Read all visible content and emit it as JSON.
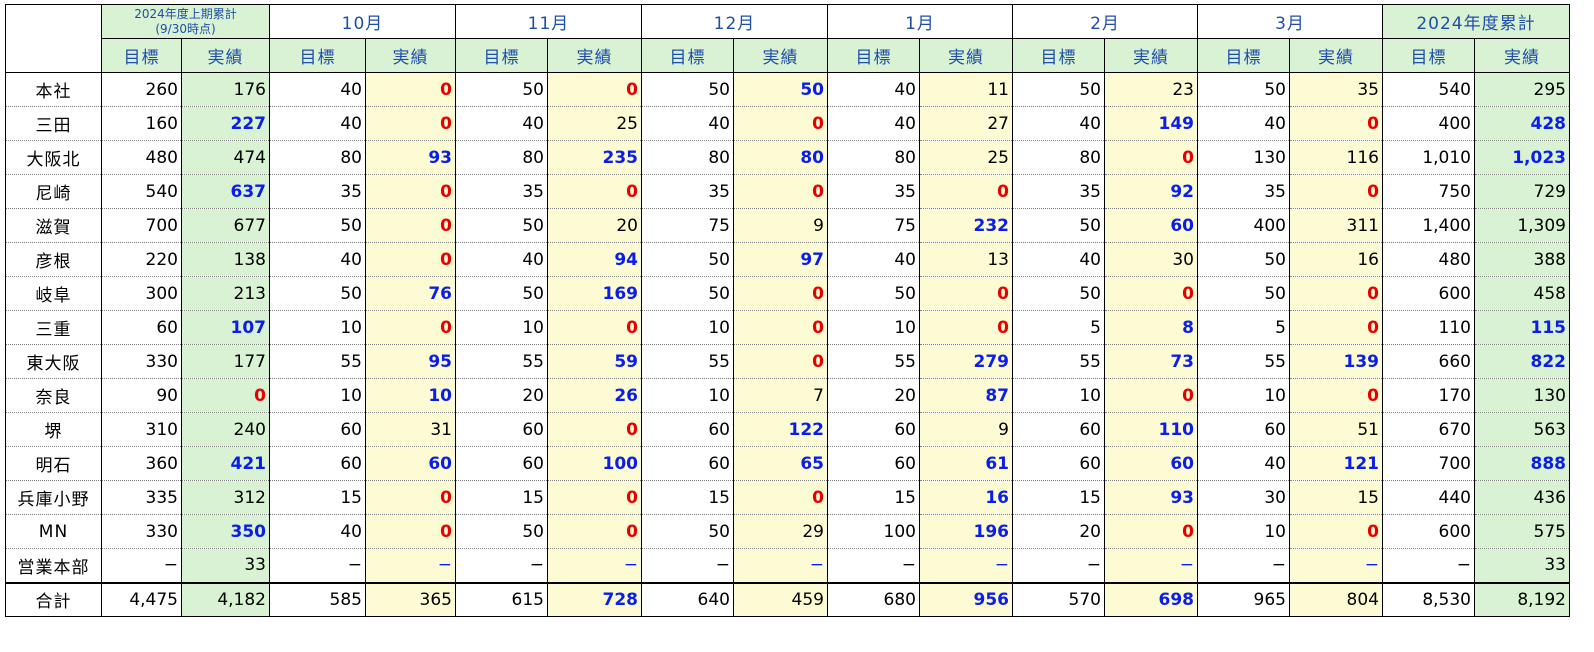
{
  "header": {
    "corner": "",
    "periods": [
      {
        "line1": "2024年度上期累計",
        "line2": "(9/30時点)"
      },
      {
        "line1": "10月"
      },
      {
        "line1": "11月"
      },
      {
        "line1": "12月"
      },
      {
        "line1": "1月"
      },
      {
        "line1": "2月"
      },
      {
        "line1": "3月"
      },
      {
        "line1": "2024年度累計"
      }
    ],
    "sub_target": "目標",
    "sub_actual": "実績"
  },
  "rows": [
    {
      "label": "本社",
      "cells": [
        {
          "v": "260",
          "c": ""
        },
        {
          "v": "176",
          "c": ""
        },
        {
          "v": "40",
          "c": ""
        },
        {
          "v": "0",
          "c": "red"
        },
        {
          "v": "50",
          "c": ""
        },
        {
          "v": "0",
          "c": "red"
        },
        {
          "v": "50",
          "c": ""
        },
        {
          "v": "50",
          "c": "blue"
        },
        {
          "v": "40",
          "c": ""
        },
        {
          "v": "11",
          "c": ""
        },
        {
          "v": "50",
          "c": ""
        },
        {
          "v": "23",
          "c": ""
        },
        {
          "v": "50",
          "c": ""
        },
        {
          "v": "35",
          "c": ""
        },
        {
          "v": "540",
          "c": ""
        },
        {
          "v": "295",
          "c": ""
        }
      ]
    },
    {
      "label": "三田",
      "cells": [
        {
          "v": "160",
          "c": ""
        },
        {
          "v": "227",
          "c": "blue"
        },
        {
          "v": "40",
          "c": ""
        },
        {
          "v": "0",
          "c": "red"
        },
        {
          "v": "40",
          "c": ""
        },
        {
          "v": "25",
          "c": ""
        },
        {
          "v": "40",
          "c": ""
        },
        {
          "v": "0",
          "c": "red"
        },
        {
          "v": "40",
          "c": ""
        },
        {
          "v": "27",
          "c": ""
        },
        {
          "v": "40",
          "c": ""
        },
        {
          "v": "149",
          "c": "blue"
        },
        {
          "v": "40",
          "c": ""
        },
        {
          "v": "0",
          "c": "red"
        },
        {
          "v": "400",
          "c": ""
        },
        {
          "v": "428",
          "c": "blue"
        }
      ]
    },
    {
      "label": "大阪北",
      "cells": [
        {
          "v": "480",
          "c": ""
        },
        {
          "v": "474",
          "c": ""
        },
        {
          "v": "80",
          "c": ""
        },
        {
          "v": "93",
          "c": "blue"
        },
        {
          "v": "80",
          "c": ""
        },
        {
          "v": "235",
          "c": "blue"
        },
        {
          "v": "80",
          "c": ""
        },
        {
          "v": "80",
          "c": "blue"
        },
        {
          "v": "80",
          "c": ""
        },
        {
          "v": "25",
          "c": ""
        },
        {
          "v": "80",
          "c": ""
        },
        {
          "v": "0",
          "c": "red"
        },
        {
          "v": "130",
          "c": ""
        },
        {
          "v": "116",
          "c": ""
        },
        {
          "v": "1,010",
          "c": ""
        },
        {
          "v": "1,023",
          "c": "blue"
        }
      ]
    },
    {
      "label": "尼崎",
      "cells": [
        {
          "v": "540",
          "c": ""
        },
        {
          "v": "637",
          "c": "blue"
        },
        {
          "v": "35",
          "c": ""
        },
        {
          "v": "0",
          "c": "red"
        },
        {
          "v": "35",
          "c": ""
        },
        {
          "v": "0",
          "c": "red"
        },
        {
          "v": "35",
          "c": ""
        },
        {
          "v": "0",
          "c": "red"
        },
        {
          "v": "35",
          "c": ""
        },
        {
          "v": "0",
          "c": "red"
        },
        {
          "v": "35",
          "c": ""
        },
        {
          "v": "92",
          "c": "blue"
        },
        {
          "v": "35",
          "c": ""
        },
        {
          "v": "0",
          "c": "red"
        },
        {
          "v": "750",
          "c": ""
        },
        {
          "v": "729",
          "c": ""
        }
      ]
    },
    {
      "label": "滋賀",
      "cells": [
        {
          "v": "700",
          "c": ""
        },
        {
          "v": "677",
          "c": ""
        },
        {
          "v": "50",
          "c": ""
        },
        {
          "v": "0",
          "c": "red"
        },
        {
          "v": "50",
          "c": ""
        },
        {
          "v": "20",
          "c": ""
        },
        {
          "v": "75",
          "c": ""
        },
        {
          "v": "9",
          "c": ""
        },
        {
          "v": "75",
          "c": ""
        },
        {
          "v": "232",
          "c": "blue"
        },
        {
          "v": "50",
          "c": ""
        },
        {
          "v": "60",
          "c": "blue"
        },
        {
          "v": "400",
          "c": ""
        },
        {
          "v": "311",
          "c": ""
        },
        {
          "v": "1,400",
          "c": ""
        },
        {
          "v": "1,309",
          "c": ""
        }
      ]
    },
    {
      "label": "彦根",
      "cells": [
        {
          "v": "220",
          "c": ""
        },
        {
          "v": "138",
          "c": ""
        },
        {
          "v": "40",
          "c": ""
        },
        {
          "v": "0",
          "c": "red"
        },
        {
          "v": "40",
          "c": ""
        },
        {
          "v": "94",
          "c": "blue"
        },
        {
          "v": "50",
          "c": ""
        },
        {
          "v": "97",
          "c": "blue"
        },
        {
          "v": "40",
          "c": ""
        },
        {
          "v": "13",
          "c": ""
        },
        {
          "v": "40",
          "c": ""
        },
        {
          "v": "30",
          "c": ""
        },
        {
          "v": "50",
          "c": ""
        },
        {
          "v": "16",
          "c": ""
        },
        {
          "v": "480",
          "c": ""
        },
        {
          "v": "388",
          "c": ""
        }
      ]
    },
    {
      "label": "岐阜",
      "cells": [
        {
          "v": "300",
          "c": ""
        },
        {
          "v": "213",
          "c": ""
        },
        {
          "v": "50",
          "c": ""
        },
        {
          "v": "76",
          "c": "blue"
        },
        {
          "v": "50",
          "c": ""
        },
        {
          "v": "169",
          "c": "blue"
        },
        {
          "v": "50",
          "c": ""
        },
        {
          "v": "0",
          "c": "red"
        },
        {
          "v": "50",
          "c": ""
        },
        {
          "v": "0",
          "c": "red"
        },
        {
          "v": "50",
          "c": ""
        },
        {
          "v": "0",
          "c": "red"
        },
        {
          "v": "50",
          "c": ""
        },
        {
          "v": "0",
          "c": "red"
        },
        {
          "v": "600",
          "c": ""
        },
        {
          "v": "458",
          "c": ""
        }
      ]
    },
    {
      "label": "三重",
      "cells": [
        {
          "v": "60",
          "c": ""
        },
        {
          "v": "107",
          "c": "blue"
        },
        {
          "v": "10",
          "c": ""
        },
        {
          "v": "0",
          "c": "red"
        },
        {
          "v": "10",
          "c": ""
        },
        {
          "v": "0",
          "c": "red"
        },
        {
          "v": "10",
          "c": ""
        },
        {
          "v": "0",
          "c": "red"
        },
        {
          "v": "10",
          "c": ""
        },
        {
          "v": "0",
          "c": "red"
        },
        {
          "v": "5",
          "c": ""
        },
        {
          "v": "8",
          "c": "blue"
        },
        {
          "v": "5",
          "c": ""
        },
        {
          "v": "0",
          "c": "red"
        },
        {
          "v": "110",
          "c": ""
        },
        {
          "v": "115",
          "c": "blue"
        }
      ]
    },
    {
      "label": "東大阪",
      "cells": [
        {
          "v": "330",
          "c": ""
        },
        {
          "v": "177",
          "c": ""
        },
        {
          "v": "55",
          "c": ""
        },
        {
          "v": "95",
          "c": "blue"
        },
        {
          "v": "55",
          "c": ""
        },
        {
          "v": "59",
          "c": "blue"
        },
        {
          "v": "55",
          "c": ""
        },
        {
          "v": "0",
          "c": "red"
        },
        {
          "v": "55",
          "c": ""
        },
        {
          "v": "279",
          "c": "blue"
        },
        {
          "v": "55",
          "c": ""
        },
        {
          "v": "73",
          "c": "blue"
        },
        {
          "v": "55",
          "c": ""
        },
        {
          "v": "139",
          "c": "blue"
        },
        {
          "v": "660",
          "c": ""
        },
        {
          "v": "822",
          "c": "blue"
        }
      ]
    },
    {
      "label": "奈良",
      "cells": [
        {
          "v": "90",
          "c": ""
        },
        {
          "v": "0",
          "c": "red"
        },
        {
          "v": "10",
          "c": ""
        },
        {
          "v": "10",
          "c": "blue"
        },
        {
          "v": "20",
          "c": ""
        },
        {
          "v": "26",
          "c": "blue"
        },
        {
          "v": "10",
          "c": ""
        },
        {
          "v": "7",
          "c": ""
        },
        {
          "v": "20",
          "c": ""
        },
        {
          "v": "87",
          "c": "blue"
        },
        {
          "v": "10",
          "c": ""
        },
        {
          "v": "0",
          "c": "red"
        },
        {
          "v": "10",
          "c": ""
        },
        {
          "v": "0",
          "c": "red"
        },
        {
          "v": "170",
          "c": ""
        },
        {
          "v": "130",
          "c": ""
        }
      ]
    },
    {
      "label": "堺",
      "cells": [
        {
          "v": "310",
          "c": ""
        },
        {
          "v": "240",
          "c": ""
        },
        {
          "v": "60",
          "c": ""
        },
        {
          "v": "31",
          "c": ""
        },
        {
          "v": "60",
          "c": ""
        },
        {
          "v": "0",
          "c": "red"
        },
        {
          "v": "60",
          "c": ""
        },
        {
          "v": "122",
          "c": "blue"
        },
        {
          "v": "60",
          "c": ""
        },
        {
          "v": "9",
          "c": ""
        },
        {
          "v": "60",
          "c": ""
        },
        {
          "v": "110",
          "c": "blue"
        },
        {
          "v": "60",
          "c": ""
        },
        {
          "v": "51",
          "c": ""
        },
        {
          "v": "670",
          "c": ""
        },
        {
          "v": "563",
          "c": ""
        }
      ]
    },
    {
      "label": "明石",
      "cells": [
        {
          "v": "360",
          "c": ""
        },
        {
          "v": "421",
          "c": "blue"
        },
        {
          "v": "60",
          "c": ""
        },
        {
          "v": "60",
          "c": "blue"
        },
        {
          "v": "60",
          "c": ""
        },
        {
          "v": "100",
          "c": "blue"
        },
        {
          "v": "60",
          "c": ""
        },
        {
          "v": "65",
          "c": "blue"
        },
        {
          "v": "60",
          "c": ""
        },
        {
          "v": "61",
          "c": "blue"
        },
        {
          "v": "60",
          "c": ""
        },
        {
          "v": "60",
          "c": "blue"
        },
        {
          "v": "40",
          "c": ""
        },
        {
          "v": "121",
          "c": "blue"
        },
        {
          "v": "700",
          "c": ""
        },
        {
          "v": "888",
          "c": "blue"
        }
      ]
    },
    {
      "label": "兵庫小野",
      "cells": [
        {
          "v": "335",
          "c": ""
        },
        {
          "v": "312",
          "c": ""
        },
        {
          "v": "15",
          "c": ""
        },
        {
          "v": "0",
          "c": "red"
        },
        {
          "v": "15",
          "c": ""
        },
        {
          "v": "0",
          "c": "red"
        },
        {
          "v": "15",
          "c": ""
        },
        {
          "v": "0",
          "c": "red"
        },
        {
          "v": "15",
          "c": ""
        },
        {
          "v": "16",
          "c": "blue"
        },
        {
          "v": "15",
          "c": ""
        },
        {
          "v": "93",
          "c": "blue"
        },
        {
          "v": "30",
          "c": ""
        },
        {
          "v": "15",
          "c": ""
        },
        {
          "v": "440",
          "c": ""
        },
        {
          "v": "436",
          "c": ""
        }
      ]
    },
    {
      "label": "MN",
      "cells": [
        {
          "v": "330",
          "c": ""
        },
        {
          "v": "350",
          "c": "blue"
        },
        {
          "v": "40",
          "c": ""
        },
        {
          "v": "0",
          "c": "red"
        },
        {
          "v": "50",
          "c": ""
        },
        {
          "v": "0",
          "c": "red"
        },
        {
          "v": "50",
          "c": ""
        },
        {
          "v": "29",
          "c": ""
        },
        {
          "v": "100",
          "c": ""
        },
        {
          "v": "196",
          "c": "blue"
        },
        {
          "v": "20",
          "c": ""
        },
        {
          "v": "0",
          "c": "red"
        },
        {
          "v": "10",
          "c": ""
        },
        {
          "v": "0",
          "c": "red"
        },
        {
          "v": "600",
          "c": ""
        },
        {
          "v": "575",
          "c": ""
        }
      ]
    },
    {
      "label": "営業本部",
      "cells": [
        {
          "v": "−",
          "c": "dash"
        },
        {
          "v": "33",
          "c": ""
        },
        {
          "v": "−",
          "c": "dash"
        },
        {
          "v": "−",
          "c": "dash blue"
        },
        {
          "v": "−",
          "c": "dash"
        },
        {
          "v": "−",
          "c": "dash blue"
        },
        {
          "v": "−",
          "c": "dash"
        },
        {
          "v": "−",
          "c": "dash blue"
        },
        {
          "v": "−",
          "c": "dash"
        },
        {
          "v": "−",
          "c": "dash blue"
        },
        {
          "v": "−",
          "c": "dash"
        },
        {
          "v": "−",
          "c": "dash blue"
        },
        {
          "v": "−",
          "c": "dash"
        },
        {
          "v": "−",
          "c": "dash blue"
        },
        {
          "v": "−",
          "c": "dash"
        },
        {
          "v": "33",
          "c": ""
        }
      ]
    }
  ],
  "total": {
    "label": "合計",
    "cells": [
      {
        "v": "4,475",
        "c": ""
      },
      {
        "v": "4,182",
        "c": ""
      },
      {
        "v": "585",
        "c": ""
      },
      {
        "v": "365",
        "c": ""
      },
      {
        "v": "615",
        "c": ""
      },
      {
        "v": "728",
        "c": "blue"
      },
      {
        "v": "640",
        "c": ""
      },
      {
        "v": "459",
        "c": ""
      },
      {
        "v": "680",
        "c": ""
      },
      {
        "v": "956",
        "c": "blue"
      },
      {
        "v": "570",
        "c": ""
      },
      {
        "v": "698",
        "c": "blue"
      },
      {
        "v": "965",
        "c": ""
      },
      {
        "v": "804",
        "c": ""
      },
      {
        "v": "8,530",
        "c": ""
      },
      {
        "v": "8,192",
        "c": ""
      }
    ]
  },
  "colors": {
    "header_text": "#1f4eaa",
    "green_fill": "#d9f2d3",
    "yellow_fill": "#fdfbd4",
    "blue_value": "#0a1ee6",
    "red_value": "#e60000"
  }
}
